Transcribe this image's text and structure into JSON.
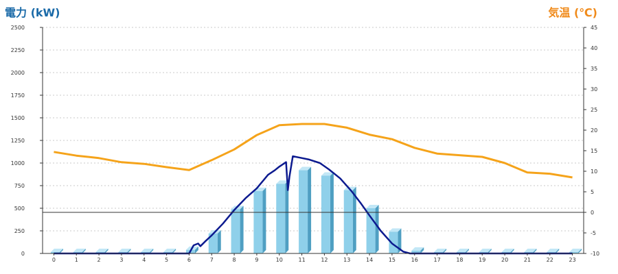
{
  "header": {
    "left_axis_title": "電力 (kW)",
    "right_axis_title": "気温 (℃)"
  },
  "colors": {
    "bar_front": "#8fd0ea",
    "bar_top": "#c2e7f6",
    "bar_side": "#4f9fc2",
    "power_line": "#0c1a8f",
    "temp_line": "#f5a31a",
    "left_title": "#1a6aa8",
    "right_title": "#f08a1a"
  },
  "chart_data": {
    "type": "bar",
    "categories": [
      "0",
      "1",
      "2",
      "3",
      "4",
      "5",
      "6",
      "7",
      "8",
      "9",
      "10",
      "11",
      "12",
      "13",
      "14",
      "15",
      "16",
      "17",
      "18",
      "19",
      "20",
      "21",
      "22",
      "23"
    ],
    "ylabel": "電力 (kW)",
    "y2label": "気温 (℃)",
    "ylim": [
      0,
      2500
    ],
    "y2lim": [
      -10,
      45
    ],
    "yticks": [
      "0",
      "250",
      "500",
      "750",
      "1000",
      "1250",
      "1500",
      "1750",
      "2000",
      "2250",
      "2500"
    ],
    "y2ticks": [
      "-10",
      "-5",
      "0",
      "5",
      "10",
      "15",
      "20",
      "25",
      "30",
      "35",
      "40",
      "45"
    ],
    "grid": true,
    "series": [
      {
        "type": "bar",
        "axis": "left",
        "values": [
          15,
          15,
          15,
          15,
          15,
          15,
          40,
          220,
          490,
          690,
          770,
          920,
          860,
          700,
          500,
          240,
          30,
          15,
          15,
          15,
          15,
          15,
          15,
          15
        ]
      },
      {
        "type": "line",
        "axis": "left",
        "points": [
          [
            0,
            0
          ],
          [
            1,
            0
          ],
          [
            2,
            0
          ],
          [
            3,
            0
          ],
          [
            4,
            0
          ],
          [
            5,
            0
          ],
          [
            6,
            0
          ],
          [
            6.2,
            90
          ],
          [
            6.4,
            110
          ],
          [
            6.5,
            80
          ],
          [
            6.7,
            130
          ],
          [
            7,
            200
          ],
          [
            7.5,
            330
          ],
          [
            8,
            480
          ],
          [
            8.5,
            610
          ],
          [
            9,
            720
          ],
          [
            9.5,
            870
          ],
          [
            9.8,
            920
          ],
          [
            10,
            960
          ],
          [
            10.3,
            1010
          ],
          [
            10.38,
            700
          ],
          [
            10.45,
            850
          ],
          [
            10.6,
            1075
          ],
          [
            10.9,
            1060
          ],
          [
            11.3,
            1040
          ],
          [
            11.8,
            1000
          ],
          [
            12.2,
            930
          ],
          [
            12.7,
            830
          ],
          [
            13.2,
            690
          ],
          [
            13.6,
            560
          ],
          [
            14,
            420
          ],
          [
            14.5,
            250
          ],
          [
            15,
            110
          ],
          [
            15.5,
            20
          ],
          [
            15.8,
            0
          ],
          [
            16,
            0
          ],
          [
            17,
            0
          ],
          [
            18,
            0
          ],
          [
            19,
            0
          ],
          [
            20,
            0
          ],
          [
            21,
            0
          ],
          [
            22,
            0
          ],
          [
            23,
            0
          ]
        ]
      },
      {
        "type": "line",
        "axis": "right",
        "values": [
          14.7,
          13.8,
          13.2,
          12.2,
          11.8,
          11.0,
          10.3,
          12.7,
          15.3,
          18.8,
          21.2,
          21.5,
          21.5,
          20.6,
          18.9,
          17.8,
          15.7,
          14.3,
          13.9,
          13.5,
          12.0,
          9.7,
          9.4,
          8.5
        ]
      }
    ]
  }
}
